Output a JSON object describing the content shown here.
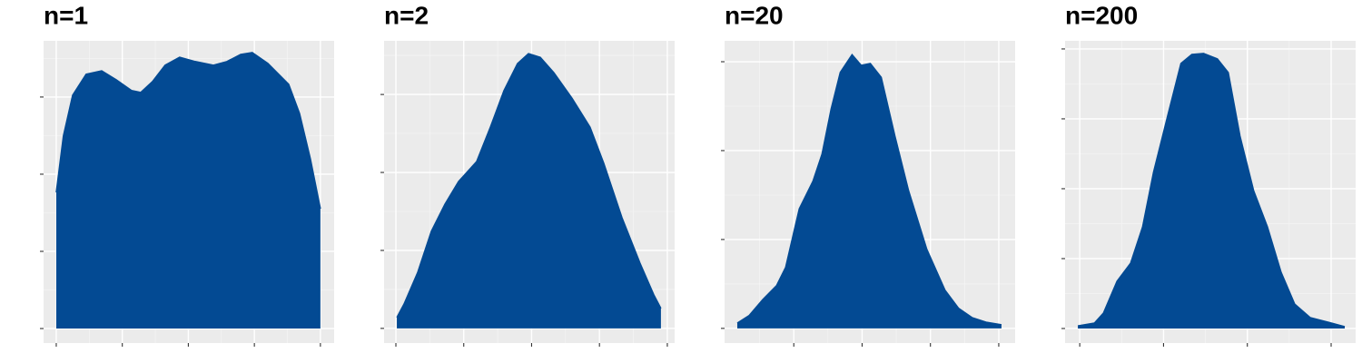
{
  "chart_data": [
    {
      "type": "area",
      "title": "n=1",
      "color": "#034a93",
      "grid": true,
      "x": [
        0,
        0.027,
        0.062,
        0.113,
        0.172,
        0.227,
        0.285,
        0.32,
        0.364,
        0.412,
        0.467,
        0.526,
        0.595,
        0.646,
        0.698,
        0.742,
        0.801,
        0.88,
        0.921,
        0.962,
        1.0
      ],
      "values": [
        0.441,
        0.624,
        0.756,
        0.824,
        0.835,
        0.806,
        0.771,
        0.765,
        0.8,
        0.853,
        0.879,
        0.865,
        0.853,
        0.865,
        0.888,
        0.894,
        0.859,
        0.791,
        0.697,
        0.55,
        0.388
      ],
      "xlim": [
        -0.048,
        1.052
      ],
      "xticks": [
        0,
        0.25,
        0.5,
        0.75,
        1
      ],
      "ylim": [
        -0.047,
        0.932
      ],
      "yticks": [
        0,
        0.25,
        0.5,
        0.75
      ]
    },
    {
      "type": "area",
      "title": "n=2",
      "color": "#034a93",
      "grid": true,
      "x": [
        0.007,
        0.06,
        0.161,
        0.261,
        0.361,
        0.462,
        0.595,
        0.696,
        0.796,
        0.896,
        0.977,
        1.064,
        1.164,
        1.298,
        1.431,
        1.532,
        1.666,
        1.799,
        1.9,
        1.953
      ],
      "values": [
        0.035,
        0.078,
        0.18,
        0.311,
        0.398,
        0.471,
        0.535,
        0.645,
        0.762,
        0.849,
        0.881,
        0.869,
        0.82,
        0.738,
        0.645,
        0.529,
        0.355,
        0.209,
        0.108,
        0.064
      ],
      "xlim": [
        -0.087,
        2.054
      ],
      "xticks": [
        0,
        0.5,
        1,
        1.5,
        2
      ],
      "ylim": [
        -0.047,
        0.922
      ],
      "yticks": [
        0,
        0.25,
        0.5,
        0.75
      ]
    },
    {
      "type": "area",
      "title": "n=20",
      "color": "#034a93",
      "grid": true,
      "x": [
        0.3173,
        0.3347,
        0.3547,
        0.3747,
        0.388,
        0.408,
        0.428,
        0.4413,
        0.4547,
        0.468,
        0.4853,
        0.4987,
        0.512,
        0.528,
        0.548,
        0.568,
        0.5947,
        0.6213,
        0.6413,
        0.6613,
        0.6813,
        0.704
      ],
      "values": [
        0.12,
        0.29,
        0.65,
        0.96,
        1.37,
        2.69,
        3.31,
        3.92,
        4.94,
        5.76,
        6.16,
        5.92,
        5.96,
        5.65,
        4.33,
        3.1,
        1.78,
        0.86,
        0.45,
        0.24,
        0.14,
        0.08
      ],
      "xlim": [
        0.2987,
        0.724
      ],
      "xticks": [
        0.4,
        0.5,
        0.6,
        0.7
      ],
      "ylim": [
        -0.33,
        6.47
      ],
      "yticks": [
        0,
        2,
        4,
        6
      ]
    },
    {
      "type": "area",
      "title": "n=200",
      "color": "#034a93",
      "grid": true,
      "x": [
        0.4391,
        0.447,
        0.4513,
        0.4578,
        0.4643,
        0.47,
        0.4752,
        0.4817,
        0.4883,
        0.4935,
        0.4991,
        0.5057,
        0.5109,
        0.5165,
        0.523,
        0.5296,
        0.5361,
        0.5426,
        0.55,
        0.5587,
        0.5665
      ],
      "values": [
        0.19,
        0.39,
        1.1,
        3.38,
        4.68,
        7.27,
        11.17,
        15.06,
        18.96,
        19.61,
        19.68,
        19.29,
        18.31,
        13.77,
        9.87,
        7.27,
        4.03,
        1.75,
        0.78,
        0.45,
        0.13
      ],
      "xlim": [
        0.433,
        0.5717
      ],
      "xticks": [
        0.44,
        0.48,
        0.52,
        0.56
      ],
      "ylim": [
        -1.04,
        20.58
      ],
      "yticks": [
        0,
        5,
        10,
        15,
        20
      ]
    }
  ]
}
